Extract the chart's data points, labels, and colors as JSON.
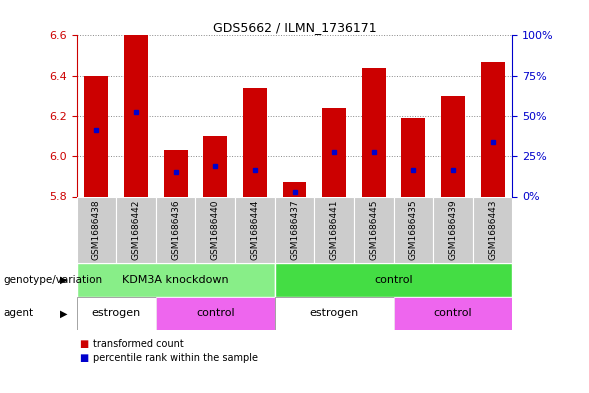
{
  "title": "GDS5662 / ILMN_1736171",
  "samples": [
    "GSM1686438",
    "GSM1686442",
    "GSM1686436",
    "GSM1686440",
    "GSM1686444",
    "GSM1686437",
    "GSM1686441",
    "GSM1686445",
    "GSM1686435",
    "GSM1686439",
    "GSM1686443"
  ],
  "bar_heights": [
    6.4,
    6.6,
    6.03,
    6.1,
    6.34,
    5.87,
    6.24,
    6.44,
    6.19,
    6.3,
    6.47
  ],
  "blue_positions": [
    6.13,
    6.22,
    5.92,
    5.95,
    5.93,
    5.82,
    6.02,
    6.02,
    5.93,
    5.93,
    6.07
  ],
  "bar_bottom": 5.8,
  "ylim": [
    5.8,
    6.6
  ],
  "yticks": [
    5.8,
    6.0,
    6.2,
    6.4,
    6.6
  ],
  "right_yticks": [
    0,
    25,
    50,
    75,
    100
  ],
  "bar_color": "#CC0000",
  "blue_color": "#0000CC",
  "genotype_groups": [
    {
      "label": "KDM3A knockdown",
      "start": 0,
      "end": 5,
      "color": "#88EE88"
    },
    {
      "label": "control",
      "start": 5,
      "end": 11,
      "color": "#44DD44"
    }
  ],
  "agent_groups": [
    {
      "label": "estrogen",
      "start": 0,
      "end": 2,
      "color": "#FFFFFF"
    },
    {
      "label": "control",
      "start": 2,
      "end": 5,
      "color": "#EE66EE"
    },
    {
      "label": "estrogen",
      "start": 5,
      "end": 8,
      "color": "#FFFFFF"
    },
    {
      "label": "control",
      "start": 8,
      "end": 11,
      "color": "#EE66EE"
    }
  ],
  "legend_items": [
    {
      "label": "transformed count",
      "color": "#CC0000"
    },
    {
      "label": "percentile rank within the sample",
      "color": "#0000CC"
    }
  ],
  "bar_width": 0.6,
  "background_color": "#FFFFFF",
  "label_genotype": "genotype/variation",
  "label_agent": "agent",
  "grid_color": "#888888",
  "axis_color_left": "#CC0000",
  "axis_color_right": "#0000CC",
  "sample_bg_color": "#CCCCCC"
}
